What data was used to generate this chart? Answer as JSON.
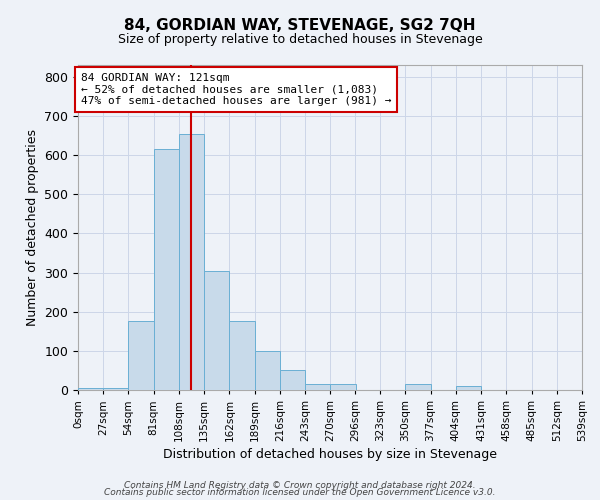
{
  "title": "84, GORDIAN WAY, STEVENAGE, SG2 7QH",
  "subtitle": "Size of property relative to detached houses in Stevenage",
  "xlabel": "Distribution of detached houses by size in Stevenage",
  "ylabel": "Number of detached properties",
  "bin_edges": [
    0,
    27,
    54,
    81,
    108,
    135,
    162,
    189,
    216,
    243,
    270,
    296,
    323,
    350,
    377,
    404,
    431,
    458,
    485,
    512,
    539
  ],
  "bar_heights": [
    5,
    5,
    175,
    615,
    655,
    305,
    175,
    100,
    50,
    15,
    15,
    0,
    0,
    15,
    0,
    10,
    0,
    0,
    0,
    0
  ],
  "bar_color": "#c8daea",
  "bar_edge_color": "#6aafd4",
  "grid_color": "#ccd6e8",
  "background_color": "#eef2f8",
  "red_line_x": 121,
  "annotation_line1": "84 GORDIAN WAY: 121sqm",
  "annotation_line2": "← 52% of detached houses are smaller (1,083)",
  "annotation_line3": "47% of semi-detached houses are larger (981) →",
  "annotation_box_color": "white",
  "annotation_box_edge_color": "#cc0000",
  "ylim": [
    0,
    830
  ],
  "yticks": [
    0,
    100,
    200,
    300,
    400,
    500,
    600,
    700,
    800
  ],
  "footnote1": "Contains HM Land Registry data © Crown copyright and database right 2024.",
  "footnote2": "Contains public sector information licensed under the Open Government Licence v3.0."
}
